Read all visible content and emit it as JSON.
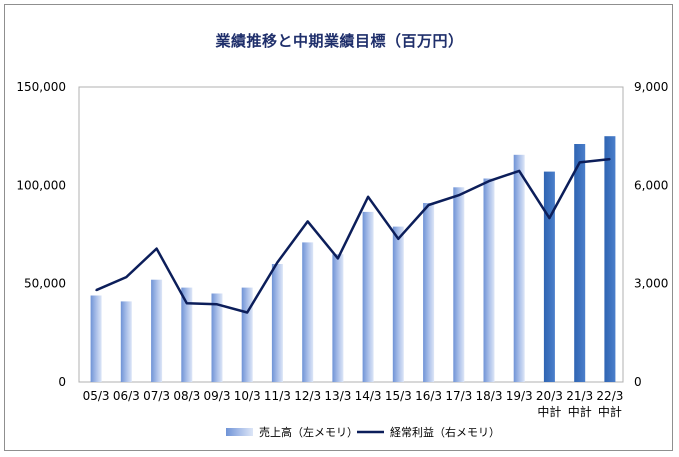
{
  "chart_data": {
    "type": "bar+line",
    "title": "業績推移と中期業績目標（百万円）",
    "categories": [
      [
        "05/3"
      ],
      [
        "06/3"
      ],
      [
        "07/3"
      ],
      [
        "08/3"
      ],
      [
        "09/3"
      ],
      [
        "10/3"
      ],
      [
        "11/3"
      ],
      [
        "12/3"
      ],
      [
        "13/3"
      ],
      [
        "14/3"
      ],
      [
        "15/3"
      ],
      [
        "16/3"
      ],
      [
        "17/3"
      ],
      [
        "18/3"
      ],
      [
        "19/3"
      ],
      [
        "20/3",
        "中計"
      ],
      [
        "21/3",
        "中計"
      ],
      [
        "22/3",
        "中計"
      ]
    ],
    "left_axis": {
      "ticks": [
        "0",
        "50,000",
        "100,000",
        "150,000"
      ],
      "ylim": [
        0,
        150000
      ]
    },
    "right_axis": {
      "ticks": [
        "0",
        "3,000",
        "6,000",
        "9,000"
      ],
      "ylim": [
        0,
        9000
      ]
    },
    "series": [
      {
        "name": "売上高（左メモリ）",
        "kind": "bar",
        "axis": "left",
        "values": [
          44000,
          41000,
          52000,
          48000,
          45000,
          48000,
          60000,
          71000,
          65000,
          86500,
          79000,
          91000,
          99000,
          103500,
          115500,
          107000,
          121000,
          125000
        ],
        "plan_from_index": 15,
        "color": "#9db3e3",
        "plan_color": "#3f74c0"
      },
      {
        "name": "経常利益（右メモリ）",
        "kind": "line",
        "axis": "right",
        "values": [
          2800,
          3200,
          4070,
          2400,
          2370,
          2120,
          3650,
          4900,
          3770,
          5650,
          4370,
          5400,
          5700,
          6130,
          6440,
          5000,
          6700,
          6800
        ],
        "color": "#0c1e5a"
      }
    ],
    "grid": false,
    "legend": "bottom"
  }
}
